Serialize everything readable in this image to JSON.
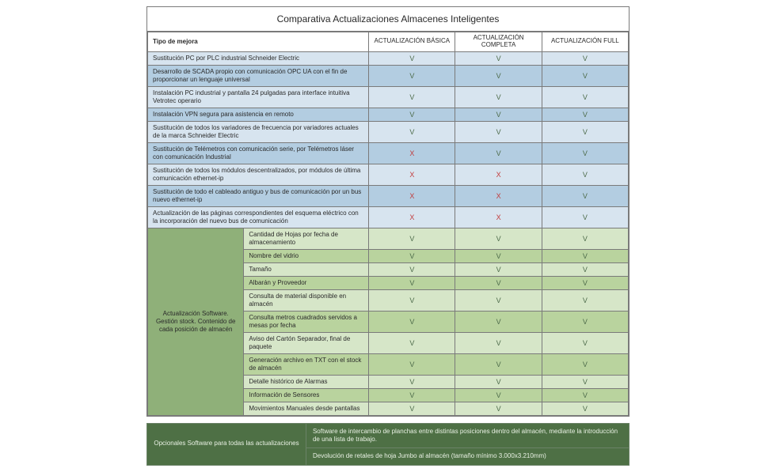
{
  "title": "Comparativa Actualizaciones Almacenes Inteligentes",
  "headers": {
    "type": "Tipo de mejora",
    "basic": "ACTUALIZACIÓN BÁSICA",
    "complete": "ACTUALIZACIÓN COMPLETA",
    "full": "ACTUALIZACIÓN FULL"
  },
  "colors": {
    "blue_light": "#d7e4ef",
    "blue_med": "#b3cde1",
    "green_light": "#d6e6c8",
    "green_med": "#b9d39e",
    "green_dark": "#8fb079",
    "opt_bg": "#4e7045",
    "mark_v": "#4d6b4a",
    "mark_x": "#c23b3b"
  },
  "hardware_rows": [
    {
      "desc": "Sustitución PC por PLC industrial Schneider Electric",
      "vals": [
        "V",
        "V",
        "V"
      ],
      "shade": "light"
    },
    {
      "desc": "Desarrollo de SCADA propio con comunicación OPC UA con el fin de proporcionar un lenguaje universal",
      "vals": [
        "V",
        "V",
        "V"
      ],
      "shade": "med"
    },
    {
      "desc": "Instalación PC industrial y pantalla 24 pulgadas para interface intuitiva Vetrotec operario",
      "vals": [
        "V",
        "V",
        "V"
      ],
      "shade": "light"
    },
    {
      "desc": "Instalación VPN segura para asistencia en remoto",
      "vals": [
        "V",
        "V",
        "V"
      ],
      "shade": "med"
    },
    {
      "desc": "Sustitución de todos los variadores de frecuencia por variadores actuales de la marca Schneider Electric",
      "vals": [
        "V",
        "V",
        "V"
      ],
      "shade": "light"
    },
    {
      "desc": "Sustitución de Telémetros con comunicación serie, por Telémetros láser con comunicación Industrial",
      "vals": [
        "X",
        "V",
        "V"
      ],
      "shade": "med"
    },
    {
      "desc": "Sustitución de todos los módulos descentralizados, por módulos de última comunicación ethernet-ip",
      "vals": [
        "X",
        "X",
        "V"
      ],
      "shade": "light"
    },
    {
      "desc": "Sustitución de todo el cableado antiguo y bus de comunicación por un bus nuevo ethernet-ip",
      "vals": [
        "X",
        "X",
        "V"
      ],
      "shade": "med"
    },
    {
      "desc": "Actualización de las páginas correspondientes del esquema eléctrico con la incorporación del nuevo bus de comunicación",
      "vals": [
        "X",
        "X",
        "V"
      ],
      "shade": "light"
    }
  ],
  "software_group_label": "Actualización Software. Gestión stock. Contenido de cada posición de almacén",
  "software_rows": [
    {
      "desc": "Cantidad de Hojas por fecha de almacenamiento",
      "vals": [
        "V",
        "V",
        "V"
      ],
      "shade": "light"
    },
    {
      "desc": "Nombre del vidrio",
      "vals": [
        "V",
        "V",
        "V"
      ],
      "shade": "med"
    },
    {
      "desc": "Tamaño",
      "vals": [
        "V",
        "V",
        "V"
      ],
      "shade": "light"
    },
    {
      "desc": "Albarán y Proveedor",
      "vals": [
        "V",
        "V",
        "V"
      ],
      "shade": "med"
    },
    {
      "desc": "Consulta de material disponible en almacén",
      "vals": [
        "V",
        "V",
        "V"
      ],
      "shade": "light"
    },
    {
      "desc": "Consulta metros cuadrados servidos a mesas por fecha",
      "vals": [
        "V",
        "V",
        "V"
      ],
      "shade": "med"
    },
    {
      "desc": "Aviso del Cartón Separador, final de paquete",
      "vals": [
        "V",
        "V",
        "V"
      ],
      "shade": "light"
    },
    {
      "desc": "Generación archivo en TXT con el stock de almacén",
      "vals": [
        "V",
        "V",
        "V"
      ],
      "shade": "med"
    },
    {
      "desc": "Detalle histórico de Alarmas",
      "vals": [
        "V",
        "V",
        "V"
      ],
      "shade": "light"
    },
    {
      "desc": "Información de Sensores",
      "vals": [
        "V",
        "V",
        "V"
      ],
      "shade": "med"
    },
    {
      "desc": "Movimientos Manuales desde pantallas",
      "vals": [
        "V",
        "V",
        "V"
      ],
      "shade": "light"
    }
  ],
  "optional_label": "Opcionales Software para todas las actualizaciones",
  "optional_rows": [
    "Software de intercambio de planchas entre distintas posiciones dentro del almacén, mediante la introducción de una lista de trabajo.",
    "Devolución de retales de hoja Jumbo al almacén (tamaño mínimo 3.000x3.210mm)"
  ]
}
